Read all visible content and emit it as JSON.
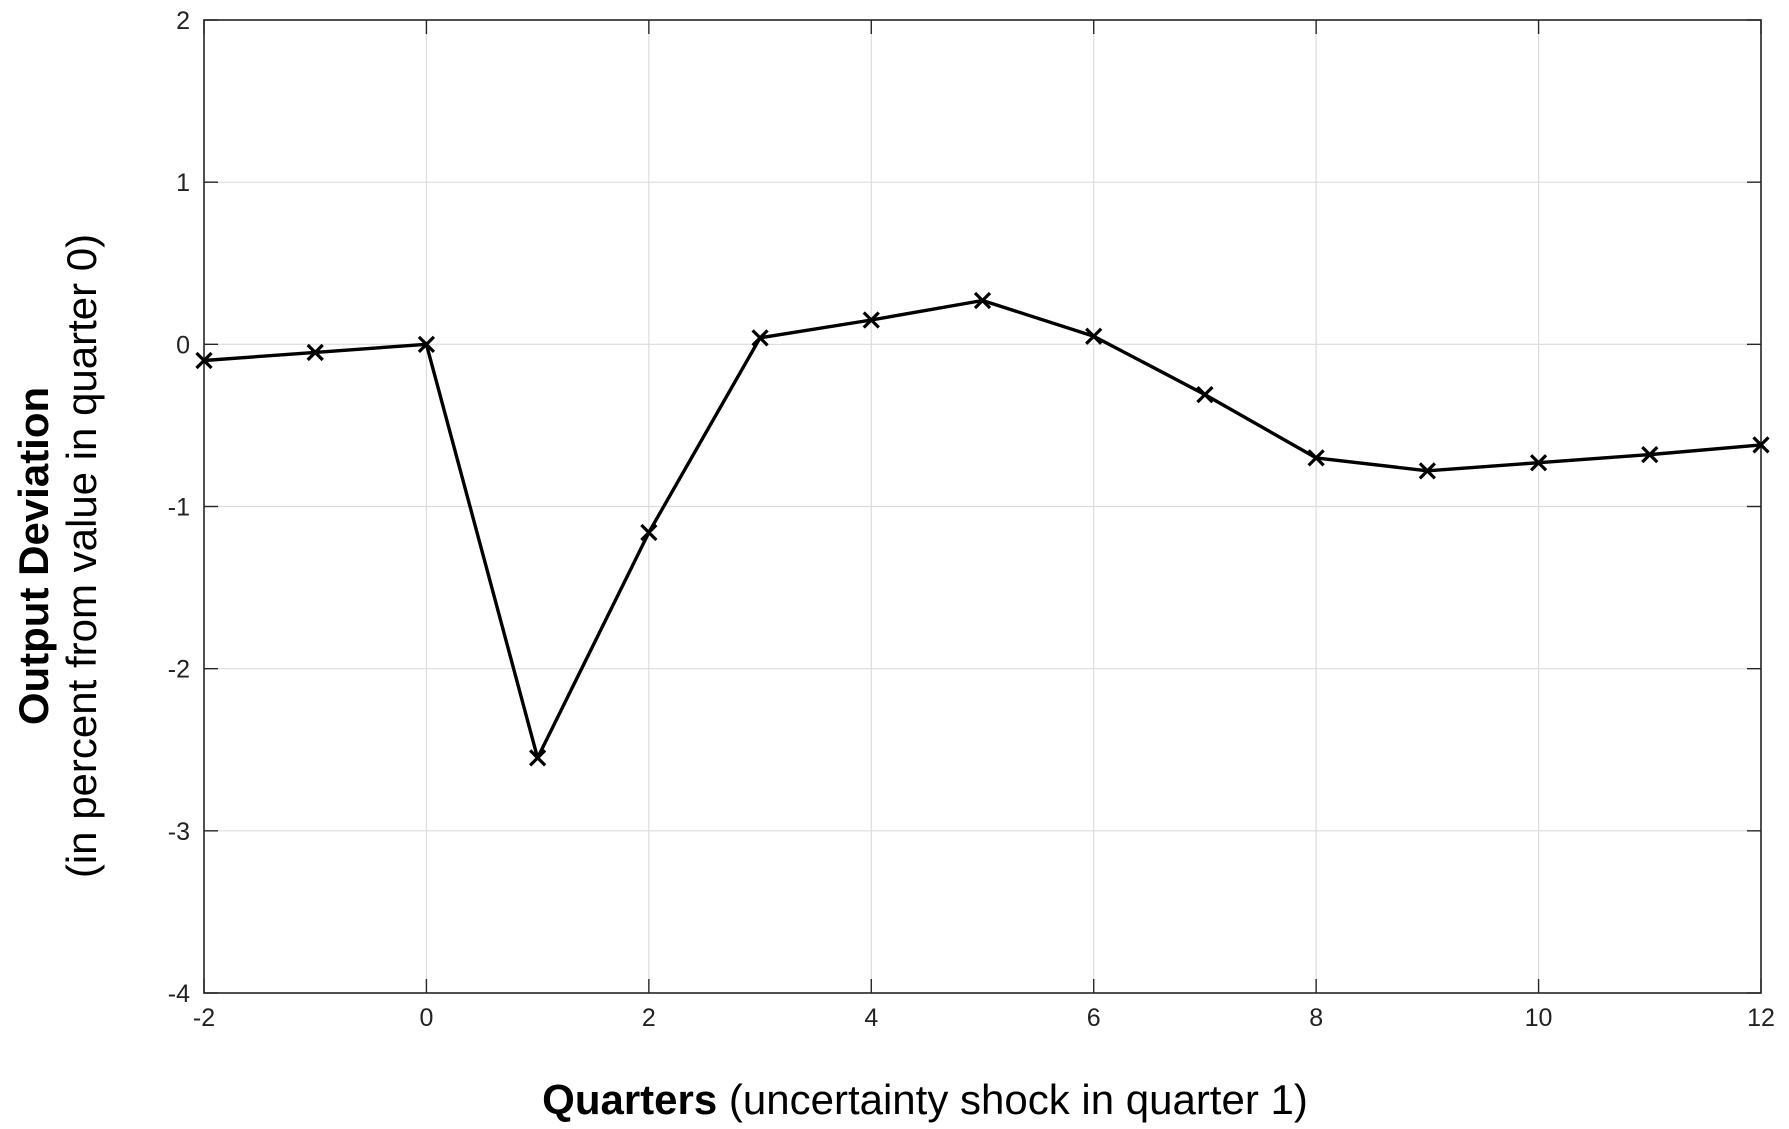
{
  "chart_data": {
    "type": "line",
    "title": "",
    "xlabel_bold": "Quarters",
    "xlabel_rest": " (uncertainty shock in quarter 1)",
    "ylabel_bold": "Output Deviation",
    "ylabel_line2": "(in percent from value in quarter 0)",
    "xlim": [
      -2,
      12
    ],
    "ylim": [
      -4,
      2
    ],
    "xticks": [
      -2,
      0,
      2,
      4,
      6,
      8,
      10,
      12
    ],
    "yticks": [
      -4,
      -3,
      -2,
      -1,
      0,
      1,
      2
    ],
    "grid": true,
    "marker": "x",
    "line_color": "#000000",
    "grid_color": "#dcdcdc",
    "series": [
      {
        "x": [
          -2,
          -1,
          0,
          1,
          2,
          3,
          4,
          5,
          6,
          7,
          8,
          9,
          10,
          11,
          12
        ],
        "y": [
          -0.1,
          -0.05,
          0.0,
          -2.55,
          -1.16,
          0.04,
          0.15,
          0.27,
          0.05,
          -0.31,
          -0.7,
          -0.78,
          -0.73,
          -0.68,
          -0.62
        ]
      }
    ]
  }
}
